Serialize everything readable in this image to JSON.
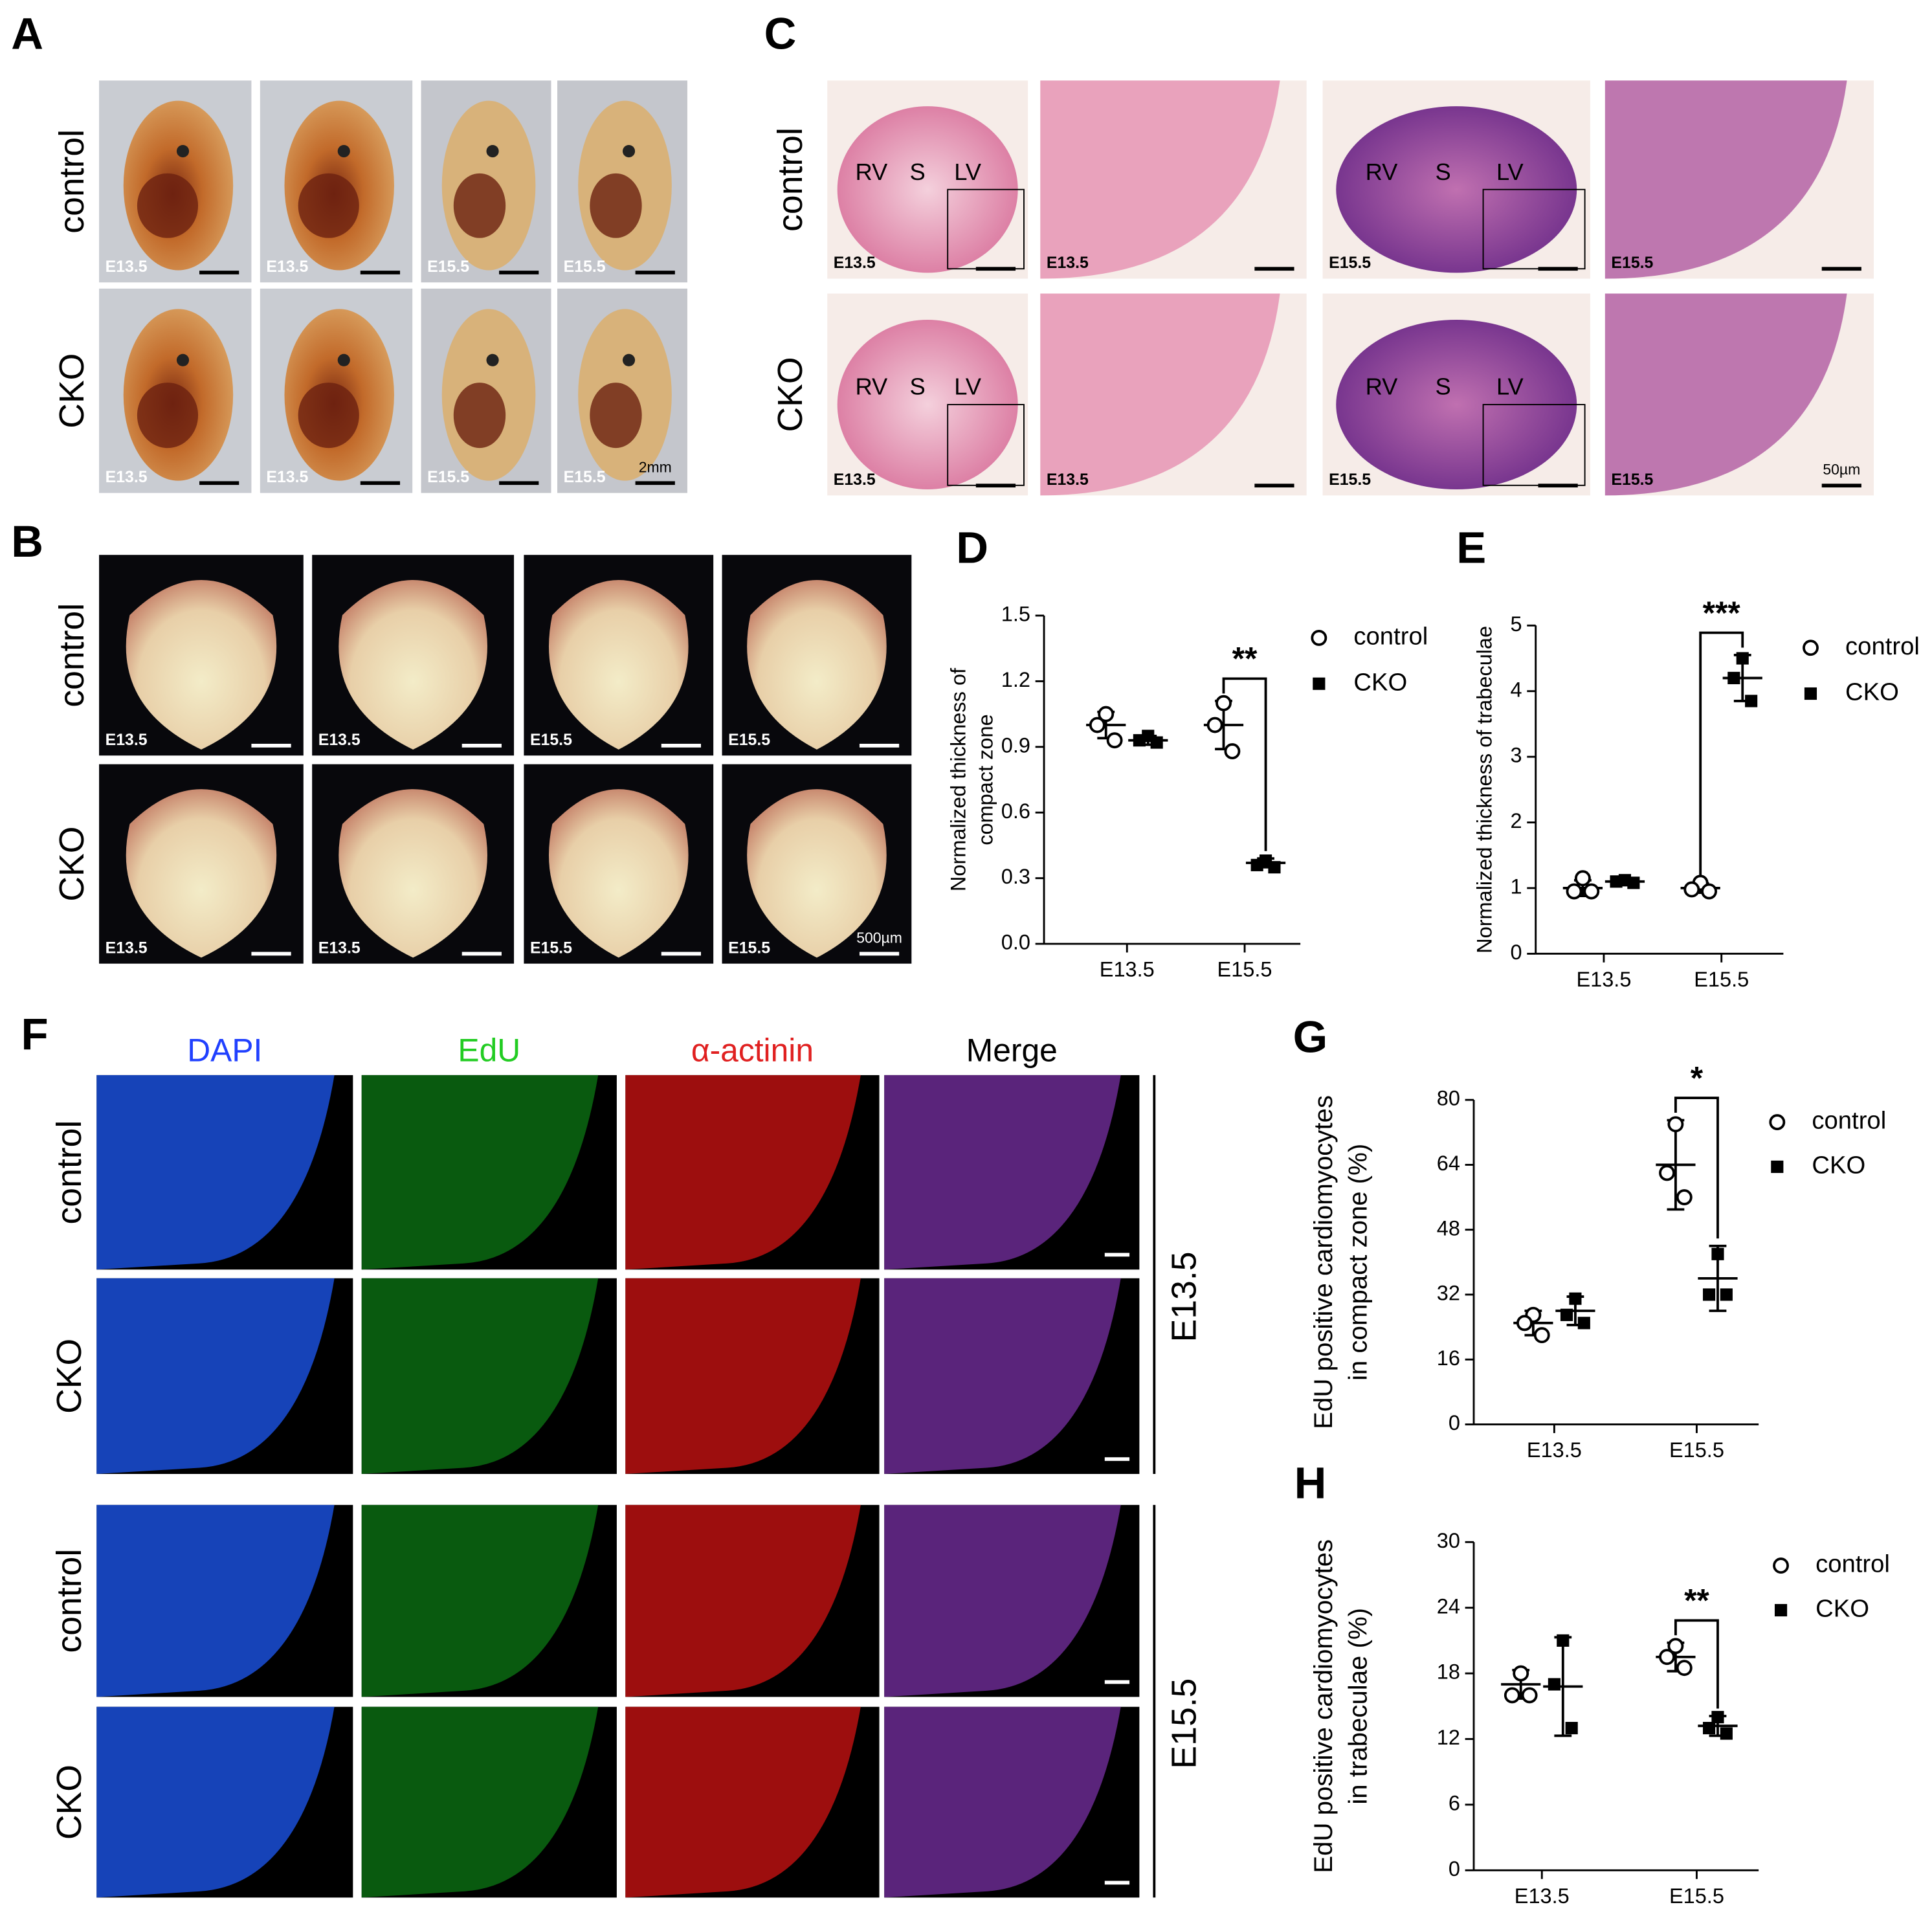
{
  "panels": {
    "A": {
      "label": "A",
      "scale": "2mm",
      "rows": [
        {
          "label": "control",
          "cells": [
            "E13.5",
            "E13.5",
            "E15.5",
            "E15.5"
          ]
        },
        {
          "label": "CKO",
          "cells": [
            "E13.5",
            "E13.5",
            "E15.5",
            "E15.5"
          ]
        }
      ]
    },
    "B": {
      "label": "B",
      "scale": "500µm",
      "rows": [
        {
          "label": "control",
          "cells": [
            "E13.5",
            "E13.5",
            "E15.5",
            "E15.5"
          ]
        },
        {
          "label": "CKO",
          "cells": [
            "E13.5",
            "E13.5",
            "E15.5",
            "E15.5"
          ]
        }
      ]
    },
    "C": {
      "label": "C",
      "scale": "50µm",
      "rows": [
        {
          "label": "control",
          "cells": [
            {
              "stage": "E13.5",
              "regions": [
                "RV",
                "S",
                "LV"
              ]
            },
            {
              "stage": "E13.5"
            },
            {
              "stage": "E15.5",
              "regions": [
                "RV",
                "S",
                "LV"
              ]
            },
            {
              "stage": "E15.5"
            }
          ]
        },
        {
          "label": "CKO",
          "cells": [
            {
              "stage": "E13.5",
              "regions": [
                "RV",
                "S",
                "LV"
              ]
            },
            {
              "stage": "E13.5"
            },
            {
              "stage": "E15.5",
              "regions": [
                "RV",
                "S",
                "LV"
              ]
            },
            {
              "stage": "E15.5"
            }
          ]
        }
      ]
    },
    "F": {
      "label": "F",
      "columns": [
        "DAPI",
        "EdU",
        "α-actinin",
        "Merge"
      ],
      "groups": [
        {
          "stage": "E13.5",
          "rows": [
            "control",
            "CKO"
          ]
        },
        {
          "stage": "E15.5",
          "rows": [
            "control",
            "CKO"
          ]
        }
      ]
    }
  },
  "chart_data": [
    {
      "type": "dot",
      "panel": "D",
      "ylabel": [
        "Normalized thickness of",
        "compact zone"
      ],
      "categories": [
        "E13.5",
        "E15.5"
      ],
      "ylim": [
        0,
        1.5
      ],
      "yticks": [
        {
          "value": 0,
          "label": "0.0"
        },
        0.3,
        0.6,
        0.9,
        1.2,
        1.5
      ],
      "significance": "**",
      "series": [
        {
          "name": "control",
          "marker": "circle",
          "values": [
            1.0,
            1.0
          ],
          "errors": [
            0.06,
            0.11
          ],
          "points": [
            [
              1.05,
              1.0,
              0.93
            ],
            [
              1.1,
              1.0,
              0.88
            ]
          ]
        },
        {
          "name": "CKO",
          "marker": "square",
          "values": [
            0.93,
            0.37
          ],
          "errors": [
            0.02,
            0.02
          ],
          "points": [
            [
              0.95,
              0.93,
              0.92
            ],
            [
              0.38,
              0.36,
              0.35
            ]
          ]
        }
      ]
    },
    {
      "type": "dot",
      "panel": "E",
      "ylabel": [
        "Normalized thickness of trabeculae"
      ],
      "categories": [
        "E13.5",
        "E15.5"
      ],
      "ylim": [
        0,
        5
      ],
      "yticks": [
        0,
        1,
        2,
        3,
        4,
        5
      ],
      "significance": "***",
      "series": [
        {
          "name": "control",
          "marker": "circle",
          "values": [
            1.0,
            1.0
          ],
          "errors": [
            0.12,
            0.07
          ],
          "points": [
            [
              1.15,
              0.95,
              0.95
            ],
            [
              1.08,
              0.98,
              0.95
            ]
          ]
        },
        {
          "name": "CKO",
          "marker": "square",
          "values": [
            1.1,
            4.2
          ],
          "errors": [
            0.03,
            0.35
          ],
          "points": [
            [
              1.12,
              1.1,
              1.08
            ],
            [
              4.5,
              4.2,
              3.85
            ]
          ]
        }
      ]
    },
    {
      "type": "dot",
      "panel": "G",
      "ylabel": [
        "EdU positive cardiomyocytes",
        "in compact zone  (%)"
      ],
      "categories": [
        "E13.5",
        "E15.5"
      ],
      "ylim": [
        0,
        80
      ],
      "yticks": [
        0,
        16,
        32,
        48,
        64,
        80
      ],
      "significance": "*",
      "series": [
        {
          "name": "control",
          "marker": "circle",
          "values": [
            25,
            64
          ],
          "errors": [
            3,
            11
          ],
          "points": [
            [
              27,
              25,
              22
            ],
            [
              74,
              62,
              56
            ]
          ]
        },
        {
          "name": "CKO",
          "marker": "square",
          "values": [
            28,
            36
          ],
          "errors": [
            3.5,
            8
          ],
          "points": [
            [
              31,
              27,
              25
            ],
            [
              42,
              32,
              32
            ]
          ]
        }
      ]
    },
    {
      "type": "dot",
      "panel": "H",
      "ylabel": [
        "EdU positive cardiomyocytes",
        "in trabeculae  (%)"
      ],
      "categories": [
        "E13.5",
        "E15.5"
      ],
      "ylim": [
        0,
        30
      ],
      "yticks": [
        0,
        6,
        12,
        18,
        24,
        30
      ],
      "significance": "**",
      "series": [
        {
          "name": "control",
          "marker": "circle",
          "values": [
            17,
            19.5
          ],
          "errors": [
            1.3,
            1.3
          ],
          "points": [
            [
              18,
              16,
              16
            ],
            [
              20.5,
              19.5,
              18.5
            ]
          ]
        },
        {
          "name": "CKO",
          "marker": "square",
          "values": [
            16.8,
            13.2
          ],
          "errors": [
            4.5,
            0.9
          ],
          "points": [
            [
              21,
              17,
              13
            ],
            [
              14,
              13,
              12.5
            ]
          ]
        }
      ]
    }
  ]
}
